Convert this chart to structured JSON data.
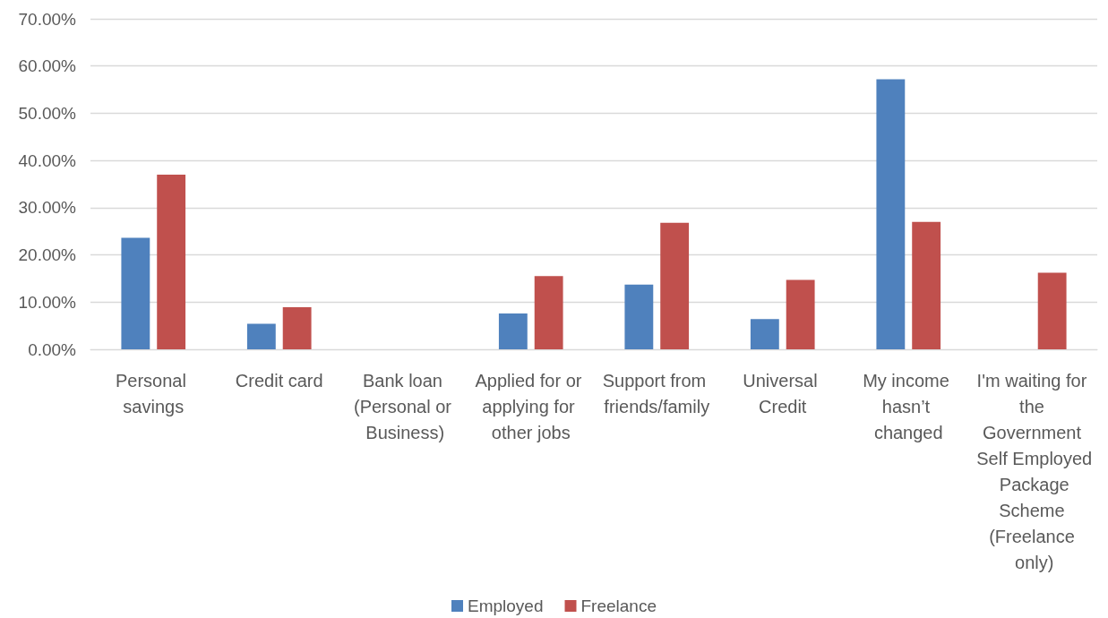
{
  "chart_data": {
    "type": "bar",
    "categories": [
      "Personal savings",
      "Credit card",
      "Bank loan (Personal or Business)",
      "Applied for or applying for other jobs",
      "Support from friends/family",
      "Universal Credit",
      "My income hasn’t changed",
      "I'm waiting for the Government Self Employed Package Scheme (Freelance only)"
    ],
    "series": [
      {
        "name": "Employed",
        "color": "#4f81bd",
        "values": [
          23.6,
          5.4,
          0,
          7.6,
          13.7,
          6.4,
          57.2,
          0
        ]
      },
      {
        "name": "Freelance",
        "color": "#c0504d",
        "values": [
          37.0,
          8.9,
          0,
          15.5,
          26.8,
          14.7,
          27.0,
          16.2
        ]
      }
    ],
    "ylim": [
      0,
      70
    ],
    "yticks": [
      {
        "value": 0,
        "label": "0.00%"
      },
      {
        "value": 10,
        "label": "10.00%"
      },
      {
        "value": 20,
        "label": "20.00%"
      },
      {
        "value": 30,
        "label": "30.00%"
      },
      {
        "value": 40,
        "label": "40.00%"
      },
      {
        "value": 50,
        "label": "50.00%"
      },
      {
        "value": 60,
        "label": "60.00%"
      },
      {
        "value": 70,
        "label": "70.00%"
      }
    ],
    "grid": "y",
    "legend": "bottom"
  }
}
